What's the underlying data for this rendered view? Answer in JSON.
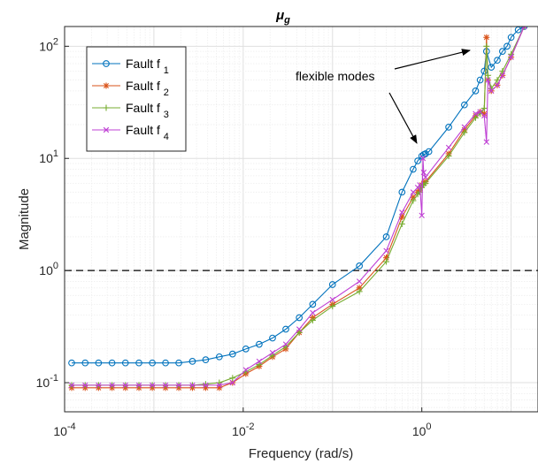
{
  "chart_data": {
    "type": "line",
    "title": "μ",
    "title_subscript": "g",
    "xlabel": "Frequency (rad/s)",
    "ylabel": "Magnitude",
    "xscale": "log",
    "yscale": "log",
    "xlim": [
      0.0001,
      20
    ],
    "ylim": [
      0.055,
      150
    ],
    "grid": "major and minor",
    "legend_position": "top-left",
    "x_ticks": [
      {
        "value": 0.0001,
        "base": "10",
        "exp": "-4"
      },
      {
        "value": 0.01,
        "base": "10",
        "exp": "-2"
      },
      {
        "value": 1,
        "base": "10",
        "exp": "0"
      }
    ],
    "y_ticks": [
      {
        "value": 0.1,
        "base": "10",
        "exp": "-1"
      },
      {
        "value": 1,
        "base": "10",
        "exp": "0"
      },
      {
        "value": 10,
        "base": "10",
        "exp": "1"
      },
      {
        "value": 100,
        "base": "10",
        "exp": "2"
      }
    ],
    "reference_line": {
      "y": 1,
      "style": "dashed",
      "color": "#000000"
    },
    "annotation": {
      "text": "flexible modes"
    },
    "series": [
      {
        "name": "Fault f",
        "subscript": "1",
        "color": "#0072BD",
        "marker": "circle",
        "x": [
          0.00012,
          0.00017,
          0.00024,
          0.00034,
          0.00048,
          0.00068,
          0.00096,
          0.00135,
          0.0019,
          0.0027,
          0.0038,
          0.0054,
          0.0076,
          0.0107,
          0.0151,
          0.0213,
          0.03,
          0.0424,
          0.06,
          0.1,
          0.2,
          0.4,
          0.6,
          0.8,
          0.9,
          1.0,
          1.05,
          1.1,
          1.2,
          2.0,
          3.0,
          4.0,
          4.5,
          5.0,
          5.3,
          6.0,
          7.0,
          8.0,
          9.0,
          10.0,
          12.0,
          14.0
        ],
        "values": [
          0.15,
          0.15,
          0.15,
          0.15,
          0.15,
          0.15,
          0.15,
          0.15,
          0.15,
          0.155,
          0.16,
          0.17,
          0.18,
          0.2,
          0.22,
          0.25,
          0.3,
          0.38,
          0.5,
          0.75,
          1.1,
          2.0,
          5.0,
          8.0,
          9.5,
          10.5,
          10.8,
          11.0,
          11.5,
          19.0,
          30.0,
          40.0,
          50.0,
          60.0,
          90.0,
          65.0,
          75.0,
          90.0,
          100.0,
          120.0,
          140.0,
          150.0
        ]
      },
      {
        "name": "Fault f",
        "subscript": "2",
        "color": "#D95319",
        "marker": "asterisk",
        "x": [
          0.00012,
          0.00017,
          0.00024,
          0.00034,
          0.00048,
          0.00068,
          0.00096,
          0.00135,
          0.0019,
          0.0027,
          0.0038,
          0.0054,
          0.0076,
          0.0107,
          0.0151,
          0.0213,
          0.03,
          0.0424,
          0.06,
          0.1,
          0.2,
          0.4,
          0.6,
          0.8,
          0.9,
          0.95,
          1.0,
          1.05,
          1.1,
          2.0,
          3.0,
          4.0,
          4.5,
          5.0,
          5.3,
          5.5,
          6.0,
          7.0,
          8.0,
          10.0,
          14.0
        ],
        "values": [
          0.09,
          0.09,
          0.09,
          0.09,
          0.09,
          0.09,
          0.09,
          0.09,
          0.09,
          0.09,
          0.09,
          0.09,
          0.1,
          0.12,
          0.14,
          0.17,
          0.2,
          0.28,
          0.38,
          0.5,
          0.7,
          1.3,
          3.0,
          4.5,
          5.0,
          5.2,
          5.8,
          6.0,
          6.2,
          11.0,
          18.0,
          24.0,
          26.0,
          25.0,
          120.0,
          50.0,
          40.0,
          45.0,
          55.0,
          80.0,
          150.0
        ]
      },
      {
        "name": "Fault f",
        "subscript": "3",
        "color": "#77AC30",
        "marker": "plus",
        "x": [
          0.00012,
          0.00017,
          0.00024,
          0.00034,
          0.00048,
          0.00068,
          0.00096,
          0.00135,
          0.0019,
          0.0027,
          0.0038,
          0.0054,
          0.0076,
          0.0107,
          0.0151,
          0.0213,
          0.03,
          0.0424,
          0.06,
          0.1,
          0.2,
          0.4,
          0.6,
          0.8,
          0.9,
          0.95,
          1.0,
          1.05,
          1.1,
          2.0,
          3.0,
          4.0,
          4.5,
          5.0,
          5.3,
          5.5,
          6.0,
          7.0,
          8.0,
          10.0,
          14.0
        ],
        "values": [
          0.095,
          0.095,
          0.095,
          0.095,
          0.095,
          0.095,
          0.095,
          0.095,
          0.095,
          0.095,
          0.097,
          0.1,
          0.11,
          0.125,
          0.145,
          0.175,
          0.21,
          0.28,
          0.36,
          0.48,
          0.65,
          1.2,
          2.6,
          4.2,
          4.8,
          5.0,
          5.5,
          5.8,
          6.0,
          10.5,
          17.0,
          23.0,
          25.0,
          28.0,
          100.0,
          55.0,
          42.0,
          50.0,
          60.0,
          85.0,
          150.0
        ]
      },
      {
        "name": "Fault f",
        "subscript": "4",
        "color": "#BF40D4",
        "marker": "x",
        "x": [
          0.00012,
          0.00017,
          0.00024,
          0.00034,
          0.00048,
          0.00068,
          0.00096,
          0.00135,
          0.0019,
          0.0027,
          0.0038,
          0.0054,
          0.0076,
          0.0107,
          0.0151,
          0.0213,
          0.03,
          0.0424,
          0.06,
          0.1,
          0.2,
          0.4,
          0.6,
          0.8,
          0.9,
          0.95,
          1.0,
          1.03,
          1.05,
          1.1,
          2.0,
          3.0,
          4.0,
          4.5,
          5.0,
          5.3,
          5.5,
          6.0,
          7.0,
          8.0,
          10.0,
          14.0
        ],
        "values": [
          0.095,
          0.095,
          0.095,
          0.095,
          0.095,
          0.095,
          0.095,
          0.095,
          0.095,
          0.095,
          0.095,
          0.095,
          0.1,
          0.13,
          0.155,
          0.185,
          0.22,
          0.3,
          0.42,
          0.55,
          0.8,
          1.5,
          3.3,
          5.0,
          5.5,
          5.8,
          3.1,
          10.0,
          7.5,
          6.8,
          12.5,
          19.0,
          25.0,
          26.0,
          24.0,
          14.0,
          50.0,
          40.0,
          45.0,
          55.0,
          80.0,
          150.0
        ]
      }
    ]
  }
}
